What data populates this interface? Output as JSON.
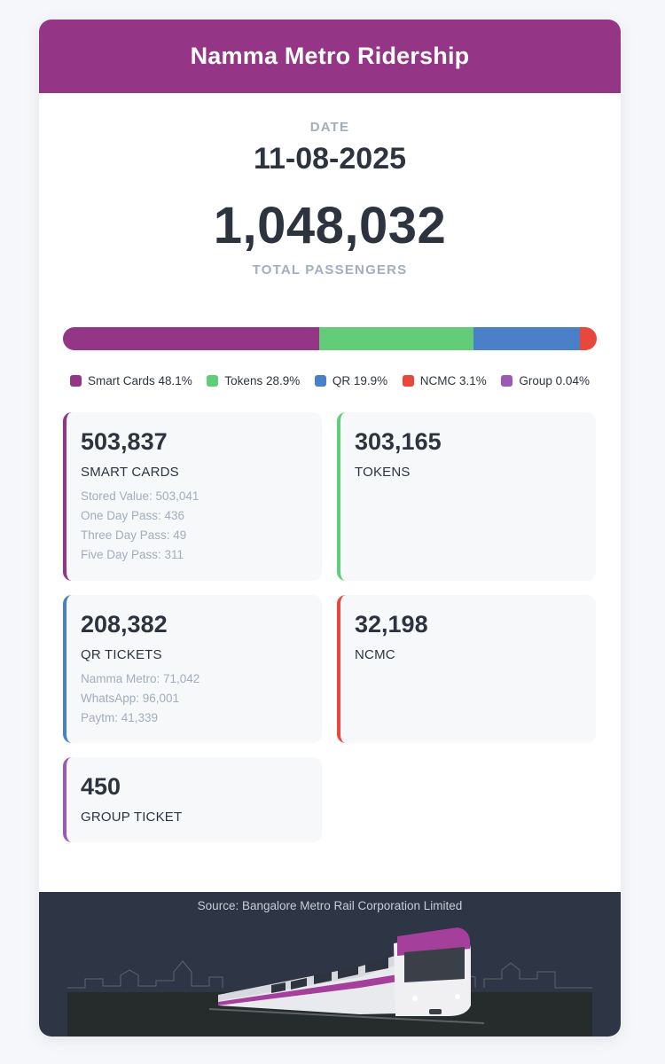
{
  "header": {
    "title": "Namma Metro Ridership"
  },
  "date": {
    "label": "DATE",
    "value": "11-08-2025"
  },
  "total": {
    "value": "1,048,032",
    "label": "TOTAL PASSENGERS"
  },
  "breakdown": [
    {
      "name": "Smart Cards",
      "pct_label": "48.1%",
      "share": 48.1,
      "color": "#943585"
    },
    {
      "name": "Tokens",
      "pct_label": "28.9%",
      "share": 28.9,
      "color": "#63cc79"
    },
    {
      "name": "QR",
      "pct_label": "19.9%",
      "share": 19.9,
      "color": "#4a80c8"
    },
    {
      "name": "NCMC",
      "pct_label": "3.1%",
      "share": 3.1,
      "color": "#e8473b"
    },
    {
      "name": "Group",
      "pct_label": "0.04%",
      "share": 0.04,
      "color": "#9b59b6"
    }
  ],
  "tiles": {
    "smart_cards": {
      "value": "503,837",
      "label": "SMART CARDS",
      "details": [
        "Stored Value: 503,041",
        "One Day Pass: 436",
        "Three Day Pass: 49",
        "Five Day Pass: 311"
      ]
    },
    "tokens": {
      "value": "303,165",
      "label": "TOKENS"
    },
    "qr": {
      "value": "208,382",
      "label": "QR TICKETS",
      "details": [
        "Namma Metro: 71,042",
        "WhatsApp: 96,001",
        "Paytm: 41,339"
      ]
    },
    "ncmc": {
      "value": "32,198",
      "label": "NCMC"
    },
    "group": {
      "value": "450",
      "label": "GROUP TICKET"
    }
  },
  "footer": {
    "source": "Source: Bangalore Metro Rail Corporation Limited",
    "image": "metro-train-illustration"
  }
}
